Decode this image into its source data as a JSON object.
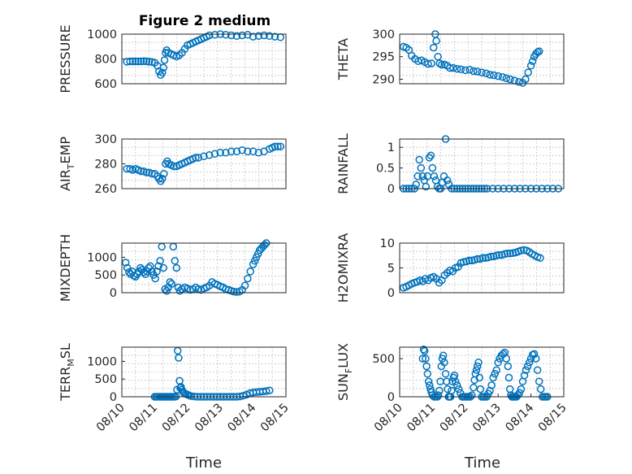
{
  "figure": {
    "title": "Figure 2 medium",
    "x_label": "Time",
    "marker_color": "#0072BD"
  },
  "chart_data": [
    {
      "type": "scatter",
      "id": "pressure",
      "ylabel": "PRESSURE",
      "ylim": [
        600,
        1000
      ],
      "yticks": [
        600,
        800,
        1000
      ],
      "ytick_labels": [
        "600",
        "800",
        "1000"
      ],
      "xlim": [
        11.6,
        14.6
      ],
      "xticks": [],
      "xtick_labels": [],
      "grid": true,
      "minor_grid": true,
      "x": [
        11.69,
        11.75,
        11.8,
        11.85,
        11.9,
        11.95,
        12.0,
        12.05,
        12.1,
        12.15,
        12.2,
        12.25,
        12.28,
        12.31,
        12.34,
        12.36,
        12.38,
        12.4,
        12.42,
        12.45,
        12.5,
        12.55,
        12.6,
        12.65,
        12.7,
        12.75,
        12.8,
        12.85,
        12.9,
        12.95,
        13.0,
        13.05,
        13.1,
        13.15,
        13.2,
        13.3,
        13.4,
        13.5,
        13.6,
        13.7,
        13.8,
        13.9,
        14.0,
        14.1,
        14.2,
        14.3,
        14.4,
        14.5
      ],
      "y": [
        778,
        780,
        780,
        780,
        780,
        780,
        782,
        780,
        778,
        775,
        770,
        745,
        700,
        670,
        690,
        730,
        790,
        850,
        870,
        850,
        840,
        830,
        820,
        830,
        850,
        880,
        910,
        920,
        930,
        940,
        950,
        960,
        970,
        980,
        990,
        995,
        1000,
        995,
        990,
        985,
        990,
        995,
        980,
        985,
        990,
        985,
        980,
        975
      ]
    },
    {
      "type": "scatter",
      "id": "theta",
      "ylabel": "THETA",
      "ylim": [
        289,
        300
      ],
      "yticks": [
        290,
        295,
        300
      ],
      "ytick_labels": [
        "290",
        "295",
        "300"
      ],
      "xlim": [
        11.6,
        14.6
      ],
      "xticks": [],
      "xtick_labels": [],
      "grid": true,
      "minor_grid": true,
      "x": [
        11.67,
        11.72,
        11.77,
        11.82,
        11.88,
        11.94,
        12.0,
        12.06,
        12.12,
        12.18,
        12.22,
        12.25,
        12.27,
        12.3,
        12.33,
        12.37,
        12.42,
        12.47,
        12.52,
        12.58,
        12.65,
        12.72,
        12.8,
        12.88,
        12.95,
        13.02,
        13.1,
        13.18,
        13.25,
        13.32,
        13.4,
        13.48,
        13.55,
        13.62,
        13.7,
        13.78,
        13.85,
        13.9,
        13.95,
        14.0,
        14.03,
        14.06,
        14.09,
        14.12,
        14.15
      ],
      "y": [
        297.2,
        297.0,
        296.5,
        295.2,
        294.5,
        294.0,
        294.2,
        293.8,
        293.4,
        293.5,
        297.0,
        300.0,
        298.5,
        295.0,
        293.5,
        293.2,
        293.3,
        293.0,
        292.5,
        292.5,
        292.3,
        292.2,
        292.0,
        292.1,
        291.8,
        291.7,
        291.5,
        291.3,
        291.0,
        290.9,
        290.7,
        290.5,
        290.2,
        290.0,
        289.7,
        289.4,
        289.2,
        290.0,
        291.5,
        293.0,
        294.0,
        295.0,
        295.6,
        296.0,
        296.2
      ]
    },
    {
      "type": "scatter",
      "id": "air_temp",
      "ylabel": "AIR_TEMP",
      "ylim": [
        260,
        300
      ],
      "yticks": [
        260,
        280,
        300
      ],
      "ytick_labels": [
        "260",
        "280",
        "300"
      ],
      "xlim": [
        11.6,
        14.6
      ],
      "xticks": [],
      "xtick_labels": [],
      "grid": true,
      "minor_grid": true,
      "x": [
        11.69,
        11.75,
        11.8,
        11.85,
        11.9,
        11.95,
        12.0,
        12.05,
        12.1,
        12.15,
        12.2,
        12.25,
        12.28,
        12.31,
        12.34,
        12.37,
        12.4,
        12.43,
        12.46,
        12.5,
        12.55,
        12.6,
        12.65,
        12.7,
        12.75,
        12.8,
        12.85,
        12.9,
        12.95,
        13.0,
        13.1,
        13.2,
        13.3,
        13.4,
        13.5,
        13.6,
        13.7,
        13.8,
        13.9,
        14.0,
        14.1,
        14.2,
        14.3,
        14.35,
        14.4,
        14.45,
        14.5
      ],
      "y": [
        276,
        276,
        275,
        276,
        275,
        274,
        274,
        273,
        273,
        272,
        272,
        270,
        268,
        266,
        268,
        272,
        280,
        282,
        280,
        279,
        278,
        278,
        279,
        280,
        281,
        282,
        283,
        284,
        285,
        285,
        286,
        287,
        288,
        289,
        289,
        290,
        290,
        291,
        290,
        290,
        289,
        290,
        292,
        293,
        294,
        294,
        294
      ]
    },
    {
      "type": "scatter",
      "id": "rainfall",
      "ylabel": "RAINFALL",
      "ylim": [
        0,
        1.2
      ],
      "yticks": [
        0,
        0.5,
        1
      ],
      "ytick_labels": [
        "0",
        "0.5",
        "1"
      ],
      "xlim": [
        11.6,
        14.6
      ],
      "xticks": [],
      "xtick_labels": [],
      "grid": true,
      "minor_grid": true,
      "x": [
        11.67,
        11.72,
        11.77,
        11.82,
        11.87,
        11.9,
        11.93,
        11.96,
        11.99,
        12.02,
        12.05,
        12.08,
        12.11,
        12.14,
        12.17,
        12.2,
        12.23,
        12.26,
        12.29,
        12.32,
        12.35,
        12.38,
        12.41,
        12.44,
        12.47,
        12.5,
        12.55,
        12.6,
        12.65,
        12.7,
        12.75,
        12.8,
        12.85,
        12.9,
        12.95,
        13.0,
        13.05,
        13.1,
        13.15,
        13.2,
        13.3,
        13.4,
        13.5,
        13.6,
        13.7,
        13.8,
        13.9,
        14.0,
        14.1,
        14.2,
        14.3,
        14.4,
        14.5
      ],
      "y": [
        0,
        0,
        0,
        0,
        0,
        0.1,
        0.3,
        0.7,
        0.5,
        0.3,
        0.2,
        0.05,
        0.3,
        0.75,
        0.8,
        0.5,
        0.3,
        0.2,
        0.05,
        0,
        0,
        0.15,
        0.3,
        1.2,
        0.2,
        0.1,
        0,
        0,
        0,
        0,
        0,
        0,
        0,
        0,
        0,
        0,
        0,
        0,
        0,
        0,
        0,
        0,
        0,
        0,
        0,
        0,
        0,
        0,
        0,
        0,
        0,
        0,
        0
      ]
    },
    {
      "type": "scatter",
      "id": "mixdepth",
      "ylabel": "MIXDEPTH",
      "ylim": [
        0,
        1400
      ],
      "yticks": [
        0,
        500,
        1000
      ],
      "ytick_labels": [
        "0",
        "500",
        "1000"
      ],
      "xlim": [
        11.6,
        14.6
      ],
      "xticks": [],
      "xtick_labels": [],
      "grid": true,
      "minor_grid": true,
      "x": [
        11.67,
        11.7,
        11.73,
        11.76,
        11.79,
        11.82,
        11.85,
        11.88,
        11.91,
        11.94,
        11.97,
        12.0,
        12.03,
        12.06,
        12.09,
        12.12,
        12.15,
        12.18,
        12.21,
        12.24,
        12.27,
        12.3,
        12.33,
        12.36,
        12.39,
        12.42,
        12.45,
        12.48,
        12.51,
        12.54,
        12.57,
        12.6,
        12.63,
        12.66,
        12.7,
        12.75,
        12.8,
        12.85,
        12.9,
        12.95,
        13.0,
        13.05,
        13.1,
        13.15,
        13.2,
        13.25,
        13.3,
        13.35,
        13.4,
        13.45,
        13.5,
        13.55,
        13.6,
        13.65,
        13.7,
        13.75,
        13.8,
        13.85,
        13.9,
        13.95,
        14.0,
        14.03,
        14.06,
        14.09,
        14.12,
        14.15,
        14.18,
        14.21,
        14.24
      ],
      "y": [
        850,
        700,
        580,
        520,
        600,
        480,
        450,
        520,
        600,
        700,
        650,
        580,
        520,
        600,
        700,
        750,
        600,
        500,
        400,
        600,
        750,
        900,
        1300,
        700,
        100,
        50,
        150,
        300,
        250,
        1300,
        900,
        700,
        150,
        50,
        100,
        150,
        120,
        80,
        100,
        150,
        100,
        80,
        120,
        150,
        200,
        300,
        250,
        220,
        180,
        150,
        100,
        80,
        50,
        30,
        20,
        30,
        80,
        200,
        400,
        600,
        800,
        900,
        1000,
        1100,
        1200,
        1250,
        1300,
        1350,
        1400
      ]
    },
    {
      "type": "scatter",
      "id": "h2omixra",
      "ylabel": "H2OMIXRA",
      "ylim": [
        0,
        10
      ],
      "yticks": [
        0,
        5,
        10
      ],
      "ytick_labels": [
        "0",
        "5",
        "10"
      ],
      "xlim": [
        11.6,
        14.6
      ],
      "xticks": [],
      "xtick_labels": [],
      "grid": true,
      "minor_grid": true,
      "x": [
        11.67,
        11.72,
        11.77,
        11.82,
        11.87,
        11.92,
        11.97,
        12.02,
        12.07,
        12.12,
        12.17,
        12.22,
        12.27,
        12.32,
        12.37,
        12.42,
        12.47,
        12.52,
        12.57,
        12.62,
        12.67,
        12.72,
        12.77,
        12.82,
        12.87,
        12.92,
        12.97,
        13.02,
        13.07,
        13.12,
        13.17,
        13.22,
        13.27,
        13.32,
        13.37,
        13.42,
        13.47,
        13.52,
        13.57,
        13.62,
        13.67,
        13.72,
        13.77,
        13.82,
        13.87,
        13.92,
        13.97,
        14.02,
        14.07,
        14.12,
        14.17
      ],
      "y": [
        1,
        1.2,
        1.5,
        1.8,
        2,
        2.2,
        2.5,
        2.3,
        2.8,
        2.5,
        3,
        3.2,
        2.8,
        2,
        2.5,
        3.5,
        4,
        4.5,
        4.3,
        5,
        5.2,
        6,
        6.2,
        6.3,
        6.5,
        6.5,
        6.6,
        6.8,
        6.8,
        7,
        7,
        7.1,
        7.3,
        7.3,
        7.5,
        7.6,
        7.6,
        7.8,
        7.9,
        7.9,
        8,
        8.1,
        8.3,
        8.5,
        8.6,
        8.5,
        8.2,
        7.8,
        7.5,
        7.2,
        7
      ]
    },
    {
      "type": "scatter",
      "id": "terr_msl",
      "ylabel": "TERR_MSL",
      "ylim": [
        0,
        1400
      ],
      "yticks": [
        0,
        500,
        1000
      ],
      "ytick_labels": [
        "0",
        "500",
        "1000"
      ],
      "xlim": [
        10,
        15
      ],
      "xticks": [
        10,
        11,
        12,
        13,
        14,
        15
      ],
      "xtick_labels": [
        "08/10",
        "08/11",
        "08/12",
        "08/13",
        "08/14",
        "08/15"
      ],
      "grid": true,
      "minor_grid": true,
      "x": [
        11.0,
        11.05,
        11.1,
        11.15,
        11.2,
        11.25,
        11.3,
        11.35,
        11.4,
        11.45,
        11.5,
        11.55,
        11.6,
        11.65,
        11.68,
        11.7,
        11.73,
        11.76,
        11.78,
        11.8,
        11.83,
        11.86,
        11.9,
        11.95,
        12.0,
        12.05,
        12.1,
        12.2,
        12.3,
        12.4,
        12.5,
        12.6,
        12.7,
        12.8,
        12.9,
        13.0,
        13.1,
        13.2,
        13.3,
        13.4,
        13.5,
        13.6,
        13.7,
        13.8,
        13.9,
        14.0,
        14.1,
        14.2,
        14.3,
        14.4,
        14.5
      ],
      "y": [
        0,
        0,
        0,
        0,
        0,
        0,
        0,
        0,
        0,
        0,
        0,
        0,
        0,
        10,
        200,
        1300,
        1100,
        450,
        250,
        280,
        200,
        150,
        100,
        80,
        60,
        40,
        20,
        10,
        0,
        0,
        0,
        0,
        0,
        0,
        0,
        0,
        0,
        0,
        0,
        0,
        0,
        10,
        30,
        60,
        100,
        120,
        130,
        140,
        150,
        160,
        180
      ]
    },
    {
      "type": "scatter",
      "id": "sun_flux",
      "ylabel": "SUN_FLUX",
      "ylim": [
        0,
        650
      ],
      "yticks": [
        0,
        500
      ],
      "ytick_labels": [
        "0",
        "500"
      ],
      "xlim": [
        10,
        15
      ],
      "xticks": [
        10,
        11,
        12,
        13,
        14,
        15
      ],
      "xtick_labels": [
        "08/10",
        "08/11",
        "08/12",
        "08/13",
        "08/14",
        "08/15"
      ],
      "grid": true,
      "minor_grid": true,
      "x": [
        10.7,
        10.73,
        10.76,
        10.79,
        10.82,
        10.85,
        10.88,
        10.91,
        10.94,
        10.97,
        11.0,
        11.05,
        11.1,
        11.15,
        11.18,
        11.21,
        11.24,
        11.27,
        11.3,
        11.33,
        11.36,
        11.4,
        11.43,
        11.46,
        11.49,
        11.52,
        11.55,
        11.58,
        11.61,
        11.64,
        11.67,
        11.7,
        11.75,
        11.8,
        11.85,
        11.9,
        11.95,
        12.0,
        12.05,
        12.1,
        12.15,
        12.2,
        12.25,
        12.28,
        12.31,
        12.34,
        12.37,
        12.4,
        12.43,
        12.46,
        12.5,
        12.55,
        12.6,
        12.65,
        12.7,
        12.75,
        12.8,
        12.85,
        12.9,
        12.95,
        13.0,
        13.05,
        13.1,
        13.15,
        13.2,
        13.25,
        13.3,
        13.33,
        13.36,
        13.39,
        13.42,
        13.45,
        13.48,
        13.52,
        13.56,
        13.6,
        13.65,
        13.7,
        13.75,
        13.8,
        13.85,
        13.9,
        13.95,
        14.0,
        14.05,
        14.1,
        14.15,
        14.2,
        14.25,
        14.3,
        14.35,
        14.4,
        14.45,
        14.5
      ],
      "y": [
        500,
        620,
        600,
        500,
        400,
        300,
        200,
        150,
        100,
        60,
        20,
        0,
        0,
        0,
        20,
        80,
        200,
        400,
        500,
        540,
        450,
        300,
        200,
        100,
        0,
        0,
        0,
        80,
        200,
        250,
        280,
        200,
        150,
        100,
        50,
        0,
        0,
        0,
        0,
        0,
        0,
        20,
        120,
        220,
        300,
        350,
        400,
        450,
        250,
        100,
        0,
        0,
        0,
        0,
        40,
        80,
        150,
        250,
        300,
        350,
        450,
        500,
        540,
        560,
        580,
        500,
        400,
        250,
        100,
        20,
        0,
        0,
        0,
        0,
        0,
        20,
        50,
        100,
        200,
        280,
        350,
        400,
        450,
        500,
        550,
        560,
        500,
        350,
        200,
        100,
        0,
        0,
        0,
        0
      ]
    }
  ]
}
